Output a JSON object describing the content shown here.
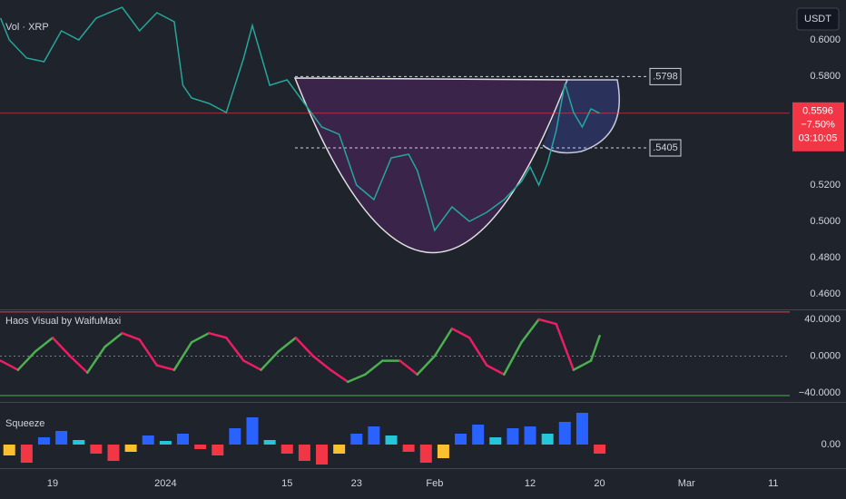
{
  "x_axis": {
    "xlim": [
      -6.07,
      84.9
    ],
    "xticks": [
      {
        "value": 0,
        "label": "19"
      },
      {
        "value": 13,
        "label": "2024"
      },
      {
        "value": 27,
        "label": "15"
      },
      {
        "value": 35,
        "label": "23"
      },
      {
        "value": 44,
        "label": "Feb"
      },
      {
        "value": 55,
        "label": "12"
      },
      {
        "value": 63,
        "label": "20"
      },
      {
        "value": 73,
        "label": "Mar"
      },
      {
        "value": 83,
        "label": "11"
      }
    ]
  },
  "currency": "USDT",
  "chart_data": [
    {
      "type": "line",
      "title": "Vol · XRP",
      "color": "#26a69a",
      "x": [
        -6,
        -5,
        -3,
        -1,
        1,
        3,
        5,
        8,
        10,
        12,
        14,
        15,
        16,
        18,
        20,
        22,
        23,
        25,
        27,
        29,
        31,
        33,
        35,
        37,
        39,
        41,
        42,
        43,
        44,
        46,
        48,
        50,
        52,
        54,
        55,
        56,
        57,
        58,
        59,
        60,
        61,
        62,
        63
      ],
      "values": [
        0.612,
        0.6,
        0.59,
        0.588,
        0.605,
        0.6,
        0.612,
        0.618,
        0.605,
        0.615,
        0.61,
        0.575,
        0.568,
        0.565,
        0.56,
        0.59,
        0.608,
        0.575,
        0.578,
        0.565,
        0.552,
        0.548,
        0.52,
        0.512,
        0.535,
        0.537,
        0.528,
        0.512,
        0.495,
        0.508,
        0.5,
        0.505,
        0.512,
        0.522,
        0.53,
        0.52,
        0.532,
        0.55,
        0.576,
        0.56,
        0.552,
        0.562,
        0.5596
      ],
      "ylim": [
        0.452,
        0.622
      ],
      "yticks": [
        {
          "value": 0.6,
          "label": "0.6000"
        },
        {
          "value": 0.58,
          "label": "0.5800"
        },
        {
          "value": 0.52,
          "label": "0.5200"
        },
        {
          "value": 0.5,
          "label": "0.5000"
        },
        {
          "value": 0.48,
          "label": "0.4800"
        },
        {
          "value": 0.46,
          "label": "0.4600"
        }
      ],
      "levels": [
        {
          "value": 0.5798,
          "label": ".5798"
        },
        {
          "value": 0.5405,
          "label": ".5405"
        }
      ],
      "last_price": {
        "value": 0.5596,
        "label": "0.5596"
      },
      "change": "−7.50%",
      "countdown": "03:10:05",
      "last_color": "#f23645"
    },
    {
      "type": "line",
      "title": "Haos Visual by WaifuMaxi",
      "up_color": "#4caf50",
      "down_color": "#e91e63",
      "x": [
        -6,
        -4,
        -2,
        0,
        2,
        4,
        6,
        8,
        10,
        12,
        14,
        16,
        18,
        20,
        22,
        24,
        26,
        28,
        30,
        32,
        34,
        36,
        38,
        40,
        42,
        44,
        46,
        48,
        50,
        52,
        54,
        56,
        58,
        60,
        62,
        63
      ],
      "values": [
        -5,
        -15,
        5,
        20,
        0,
        -18,
        10,
        25,
        18,
        -10,
        -15,
        15,
        25,
        20,
        -5,
        -15,
        5,
        20,
        0,
        -15,
        -28,
        -20,
        -5,
        -5,
        -20,
        0,
        30,
        20,
        -10,
        -20,
        15,
        40,
        35,
        -15,
        -5,
        22
      ],
      "ylim": [
        -46.9,
        48.9
      ],
      "yticks": [
        {
          "value": 40,
          "label": "40.0000"
        },
        {
          "value": 0,
          "label": "0.0000"
        },
        {
          "value": -40,
          "label": "−40.0000"
        }
      ],
      "levels": [
        {
          "value": 48,
          "color": "#f23645"
        },
        {
          "value": -43,
          "color": "#4caf50"
        }
      ]
    },
    {
      "type": "bar",
      "title": "Squeeze",
      "colors": {
        "up_rising": "#2962ff",
        "up_falling": "#26c6da",
        "down_falling": "#f23645",
        "down_rising": "#fbc02d"
      },
      "x": [
        -5,
        -3,
        -1,
        1,
        3,
        5,
        7,
        9,
        11,
        13,
        15,
        17,
        19,
        21,
        23,
        25,
        27,
        29,
        31,
        33,
        35,
        37,
        39,
        41,
        43,
        45,
        47,
        49,
        51,
        53,
        55,
        57,
        59,
        61,
        63
      ],
      "values": [
        -0.012,
        -0.02,
        0.008,
        0.015,
        0.005,
        -0.01,
        -0.018,
        -0.008,
        0.01,
        0.004,
        0.012,
        -0.005,
        -0.012,
        0.018,
        0.03,
        0.005,
        -0.01,
        -0.018,
        -0.022,
        -0.01,
        0.012,
        0.02,
        0.01,
        -0.008,
        -0.02,
        -0.015,
        0.012,
        0.022,
        0.008,
        0.018,
        0.02,
        0.012,
        0.025,
        0.035,
        -0.01
      ],
      "ylim": [
        -0.025,
        0.045
      ],
      "yticks": [
        {
          "value": 0,
          "label": "0.00"
        }
      ]
    }
  ]
}
